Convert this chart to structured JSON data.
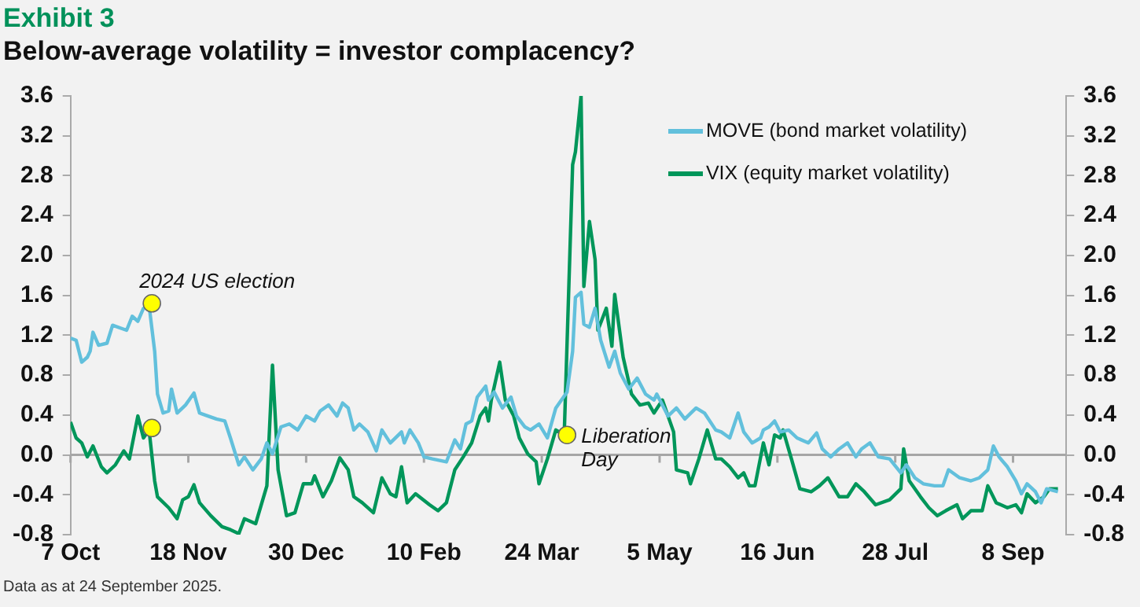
{
  "chart_data": {
    "type": "line",
    "title": "Exhibit 3",
    "subtitle": "Below-average volatility = investor complacency?",
    "xlim": [
      "2024-10-07",
      "2025-09-27"
    ],
    "xticks": [
      {
        "value": "2024-10-07",
        "label": "7 Oct"
      },
      {
        "value": "2024-11-18",
        "label": "18 Nov"
      },
      {
        "value": "2024-12-30",
        "label": "30 Dec"
      },
      {
        "value": "2025-02-10",
        "label": "10 Feb"
      },
      {
        "value": "2025-03-24",
        "label": "24 Mar"
      },
      {
        "value": "2025-05-05",
        "label": "5 May"
      },
      {
        "value": "2025-06-16",
        "label": "16 Jun"
      },
      {
        "value": "2025-07-28",
        "label": "28 Jul"
      },
      {
        "value": "2025-09-08",
        "label": "8 Sep"
      }
    ],
    "ylim": [
      -0.8,
      3.6
    ],
    "yticks": [
      -0.8,
      -0.4,
      {
        "value": 0,
        "label": "0.0"
      },
      0.4,
      0.8,
      1.2,
      1.6,
      {
        "value": 2,
        "label": "2.0"
      },
      2.4,
      2.8,
      3.2,
      3.6
    ],
    "y2lim": [
      -0.8,
      3.6
    ],
    "y2ticks": [
      -0.8,
      -0.4,
      {
        "value": 0,
        "label": "0.0"
      },
      0.4,
      0.8,
      1.2,
      1.6,
      {
        "value": 2,
        "label": "2.0"
      },
      2.4,
      2.8,
      3.2,
      3.6
    ],
    "legend": "top right",
    "line_style": "solid",
    "ref_lines": [
      {
        "axis": "y",
        "value": 0,
        "color": "#a6a6a6"
      }
    ],
    "annotations": [
      {
        "text": "2024 US election",
        "x": "2024-11-05",
        "y": 1.52
      },
      {
        "text": "Liberation Day",
        "x": "2025-04-02",
        "y": 0.2
      },
      "Data as at 24 September 2025."
    ],
    "series": [
      {
        "name": "MOVE (bond market volatility)",
        "color": "#62c0dc",
        "marker": "none",
        "x": [
          "2024-10-07",
          "2024-10-09",
          "2024-10-11",
          "2024-10-13",
          "2024-10-14",
          "2024-10-15",
          "2024-10-17",
          "2024-10-20",
          "2024-10-22",
          "2024-10-25",
          "2024-10-27",
          "2024-10-29",
          "2024-10-31",
          "2024-11-02",
          "2024-11-04",
          "2024-11-06",
          "2024-11-07",
          "2024-11-09",
          "2024-11-11",
          "2024-11-12",
          "2024-11-14",
          "2024-11-17",
          "2024-11-20",
          "2024-11-22",
          "2024-11-25",
          "2024-11-28",
          "2024-12-01",
          "2024-12-03",
          "2024-12-06",
          "2024-12-08",
          "2024-12-11",
          "2024-12-14",
          "2024-12-16",
          "2024-12-18",
          "2024-12-21",
          "2024-12-24",
          "2024-12-27",
          "2024-12-30",
          "2025-01-02",
          "2025-01-04",
          "2025-01-07",
          "2025-01-10",
          "2025-01-12",
          "2025-01-14",
          "2025-01-16",
          "2025-01-18",
          "2025-01-21",
          "2025-01-24",
          "2025-01-26",
          "2025-01-29",
          "2025-02-02",
          "2025-02-03",
          "2025-02-05",
          "2025-02-08",
          "2025-02-10",
          "2025-02-13",
          "2025-02-18",
          "2025-02-21",
          "2025-02-23",
          "2025-02-25",
          "2025-02-27",
          "2025-03-01",
          "2025-03-04",
          "2025-03-05",
          "2025-03-07",
          "2025-03-10",
          "2025-03-13",
          "2025-03-15",
          "2025-03-18",
          "2025-03-20",
          "2025-03-23",
          "2025-03-26",
          "2025-03-29",
          "2025-04-02",
          "2025-04-04",
          "2025-04-05",
          "2025-04-07",
          "2025-04-08",
          "2025-04-10",
          "2025-04-12",
          "2025-04-14",
          "2025-04-17",
          "2025-04-19",
          "2025-04-21",
          "2025-04-24",
          "2025-04-27",
          "2025-04-30",
          "2025-05-03",
          "2025-05-04",
          "2025-05-08",
          "2025-05-11",
          "2025-05-14",
          "2025-05-18",
          "2025-05-21",
          "2025-05-25",
          "2025-05-27",
          "2025-05-30",
          "2025-06-02",
          "2025-06-04",
          "2025-06-07",
          "2025-06-10",
          "2025-06-11",
          "2025-06-13",
          "2025-06-15",
          "2025-06-17",
          "2025-06-20",
          "2025-06-23",
          "2025-06-27",
          "2025-06-30",
          "2025-07-02",
          "2025-07-05",
          "2025-07-08",
          "2025-07-11",
          "2025-07-14",
          "2025-07-16",
          "2025-07-19",
          "2025-07-22",
          "2025-07-26",
          "2025-07-30",
          "2025-08-01",
          "2025-08-04",
          "2025-08-07",
          "2025-08-11",
          "2025-08-14",
          "2025-08-16",
          "2025-08-20",
          "2025-08-24",
          "2025-08-27",
          "2025-08-30",
          "2025-09-01",
          "2025-09-03",
          "2025-09-06",
          "2025-09-09",
          "2025-09-11",
          "2025-09-13",
          "2025-09-16",
          "2025-09-18",
          "2025-09-20",
          "2025-09-24"
        ],
        "values": [
          1.17,
          1.15,
          0.93,
          0.98,
          1.04,
          1.23,
          1.1,
          1.12,
          1.3,
          1.27,
          1.25,
          1.39,
          1.34,
          1.47,
          1.5,
          1.04,
          0.61,
          0.42,
          0.44,
          0.66,
          0.42,
          0.5,
          0.62,
          0.42,
          0.39,
          0.36,
          0.34,
          0.17,
          -0.1,
          -0.02,
          -0.15,
          -0.04,
          0.12,
          0.01,
          0.28,
          0.31,
          0.25,
          0.39,
          0.34,
          0.44,
          0.5,
          0.39,
          0.52,
          0.47,
          0.25,
          0.31,
          0.23,
          0.04,
          0.25,
          0.12,
          0.23,
          0.12,
          0.25,
          0.12,
          -0.02,
          -0.04,
          -0.07,
          0.15,
          0.06,
          0.31,
          0.34,
          0.58,
          0.69,
          0.55,
          0.63,
          0.47,
          0.58,
          0.39,
          0.28,
          0.25,
          0.31,
          0.17,
          0.47,
          0.63,
          1.04,
          1.58,
          1.63,
          1.31,
          1.28,
          1.47,
          1.15,
          0.88,
          1.04,
          0.82,
          0.66,
          0.77,
          0.61,
          0.55,
          0.61,
          0.39,
          0.47,
          0.36,
          0.47,
          0.42,
          0.25,
          0.23,
          0.17,
          0.42,
          0.23,
          0.12,
          0.17,
          0.25,
          0.28,
          0.34,
          0.23,
          0.25,
          0.17,
          0.12,
          0.22,
          0.06,
          -0.02,
          0.06,
          0.12,
          -0.02,
          0.06,
          0.12,
          -0.02,
          -0.04,
          -0.18,
          -0.1,
          -0.23,
          -0.29,
          -0.31,
          -0.31,
          -0.15,
          -0.23,
          -0.26,
          -0.23,
          -0.15,
          0.09,
          -0.02,
          -0.12,
          -0.26,
          -0.39,
          -0.29,
          -0.37,
          -0.48,
          -0.34,
          -0.37
        ]
      },
      {
        "name": "VIX (equity market volatility)",
        "color": "#00965a",
        "marker": "none",
        "x": [
          "2024-10-07",
          "2024-10-09",
          "2024-10-11",
          "2024-10-13",
          "2024-10-15",
          "2024-10-18",
          "2024-10-20",
          "2024-10-23",
          "2024-10-26",
          "2024-10-28",
          "2024-10-31",
          "2024-11-02",
          "2024-11-04",
          "2024-11-06",
          "2024-11-07",
          "2024-11-11",
          "2024-11-14",
          "2024-11-16",
          "2024-11-18",
          "2024-11-20",
          "2024-11-22",
          "2024-11-26",
          "2024-11-30",
          "2024-12-03",
          "2024-12-06",
          "2024-12-08",
          "2024-12-12",
          "2024-12-16",
          "2024-12-18",
          "2024-12-20",
          "2024-12-23",
          "2024-12-26",
          "2024-12-29",
          "2025-01-01",
          "2025-01-02",
          "2025-01-05",
          "2025-01-08",
          "2025-01-11",
          "2025-01-14",
          "2025-01-16",
          "2025-01-19",
          "2025-01-23",
          "2025-01-26",
          "2025-01-29",
          "2025-01-31",
          "2025-02-02",
          "2025-02-04",
          "2025-02-07",
          "2025-02-12",
          "2025-02-15",
          "2025-02-18",
          "2025-02-21",
          "2025-02-24",
          "2025-02-27",
          "2025-03-02",
          "2025-03-04",
          "2025-03-05",
          "2025-03-06",
          "2025-03-09",
          "2025-03-11",
          "2025-03-14",
          "2025-03-16",
          "2025-03-19",
          "2025-03-22",
          "2025-03-23",
          "2025-03-26",
          "2025-03-29",
          "2025-04-01",
          "2025-04-04",
          "2025-04-05",
          "2025-04-07",
          "2025-04-08",
          "2025-04-10",
          "2025-04-12",
          "2025-04-13",
          "2025-04-16",
          "2025-04-18",
          "2025-04-19",
          "2025-04-22",
          "2025-04-25",
          "2025-04-28",
          "2025-05-01",
          "2025-05-03",
          "2025-05-06",
          "2025-05-10",
          "2025-05-11",
          "2025-05-15",
          "2025-05-16",
          "2025-05-19",
          "2025-05-22",
          "2025-05-25",
          "2025-05-27",
          "2025-05-30",
          "2025-06-02",
          "2025-06-04",
          "2025-06-06",
          "2025-06-08",
          "2025-06-11",
          "2025-06-13",
          "2025-06-15",
          "2025-06-17",
          "2025-06-18",
          "2025-06-21",
          "2025-06-24",
          "2025-06-28",
          "2025-07-01",
          "2025-07-04",
          "2025-07-08",
          "2025-07-11",
          "2025-07-14",
          "2025-07-17",
          "2025-07-21",
          "2025-07-26",
          "2025-07-30",
          "2025-07-31",
          "2025-08-02",
          "2025-08-06",
          "2025-08-09",
          "2025-08-12",
          "2025-08-15",
          "2025-08-19",
          "2025-08-21",
          "2025-08-24",
          "2025-08-28",
          "2025-08-30",
          "2025-09-02",
          "2025-09-06",
          "2025-09-09",
          "2025-09-11",
          "2025-09-13",
          "2025-09-16",
          "2025-09-19",
          "2025-09-21",
          "2025-09-24"
        ],
        "values": [
          0.33,
          0.17,
          0.12,
          -0.02,
          0.09,
          -0.12,
          -0.18,
          -0.1,
          0.04,
          -0.04,
          0.39,
          0.17,
          0.25,
          -0.26,
          -0.42,
          -0.53,
          -0.64,
          -0.45,
          -0.42,
          -0.3,
          -0.48,
          -0.61,
          -0.72,
          -0.75,
          -0.79,
          -0.64,
          -0.69,
          -0.31,
          0.9,
          -0.15,
          -0.61,
          -0.58,
          -0.29,
          -0.29,
          -0.21,
          -0.42,
          -0.26,
          -0.03,
          -0.15,
          -0.42,
          -0.48,
          -0.58,
          -0.23,
          -0.39,
          -0.42,
          -0.12,
          -0.48,
          -0.39,
          -0.5,
          -0.56,
          -0.48,
          -0.15,
          -0.02,
          0.12,
          0.39,
          0.47,
          0.34,
          0.55,
          0.93,
          0.55,
          0.39,
          0.17,
          0.01,
          -0.07,
          -0.29,
          -0.04,
          0.25,
          0.2,
          2.91,
          3.04,
          3.6,
          1.69,
          2.34,
          1.96,
          1.25,
          1.47,
          1.09,
          1.61,
          0.98,
          0.61,
          0.5,
          0.52,
          0.42,
          0.55,
          0.23,
          -0.15,
          -0.18,
          -0.29,
          -0.04,
          0.25,
          -0.04,
          -0.04,
          -0.12,
          -0.23,
          -0.18,
          -0.31,
          -0.31,
          0.12,
          -0.1,
          0.2,
          0.17,
          0.25,
          -0.04,
          -0.34,
          -0.37,
          -0.31,
          -0.23,
          -0.42,
          -0.42,
          -0.29,
          -0.37,
          -0.5,
          -0.45,
          -0.34,
          0.06,
          -0.26,
          -0.42,
          -0.53,
          -0.61,
          -0.56,
          -0.5,
          -0.64,
          -0.56,
          -0.56,
          -0.31,
          -0.48,
          -0.53,
          -0.5,
          -0.58,
          -0.39,
          -0.48,
          -0.42,
          -0.34,
          -0.34
        ]
      },
      {
        "type": "scatter",
        "color": "#ffff00",
        "marker": "circle",
        "x": [
          "2024-11-05",
          "2024-11-05",
          "2025-04-02"
        ],
        "values": [
          1.52,
          0.27,
          0.2
        ]
      }
    ]
  }
}
